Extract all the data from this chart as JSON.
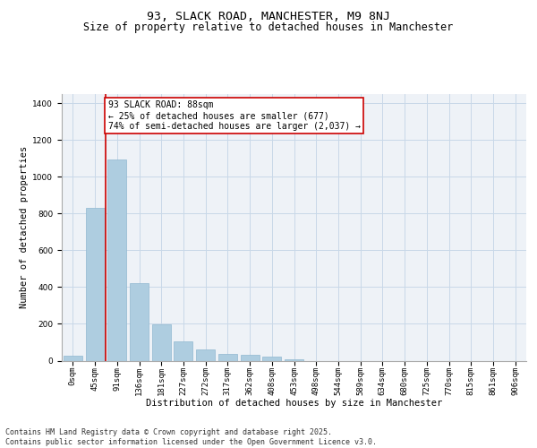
{
  "title": "93, SLACK ROAD, MANCHESTER, M9 8NJ",
  "subtitle": "Size of property relative to detached houses in Manchester",
  "xlabel": "Distribution of detached houses by size in Manchester",
  "ylabel": "Number of detached properties",
  "bar_color": "#aecde0",
  "bar_edge_color": "#90b8d0",
  "grid_color": "#c8d8e8",
  "background_color": "#eef2f7",
  "annotation_box_color": "#cc0000",
  "vline_color": "#cc0000",
  "categories": [
    "0sqm",
    "45sqm",
    "91sqm",
    "136sqm",
    "181sqm",
    "227sqm",
    "272sqm",
    "317sqm",
    "362sqm",
    "408sqm",
    "453sqm",
    "498sqm",
    "544sqm",
    "589sqm",
    "634sqm",
    "680sqm",
    "725sqm",
    "770sqm",
    "815sqm",
    "861sqm",
    "906sqm"
  ],
  "values": [
    25,
    830,
    1095,
    420,
    195,
    105,
    62,
    38,
    30,
    20,
    8,
    0,
    0,
    0,
    0,
    0,
    0,
    0,
    0,
    0,
    0
  ],
  "ylim": [
    0,
    1450
  ],
  "vline_position": 1.5,
  "annotation_text": "93 SLACK ROAD: 88sqm\n← 25% of detached houses are smaller (677)\n74% of semi-detached houses are larger (2,037) →",
  "footer_text": "Contains HM Land Registry data © Crown copyright and database right 2025.\nContains public sector information licensed under the Open Government Licence v3.0.",
  "title_fontsize": 9.5,
  "subtitle_fontsize": 8.5,
  "xlabel_fontsize": 7.5,
  "ylabel_fontsize": 7.5,
  "tick_fontsize": 6.5,
  "annotation_fontsize": 7,
  "footer_fontsize": 6
}
